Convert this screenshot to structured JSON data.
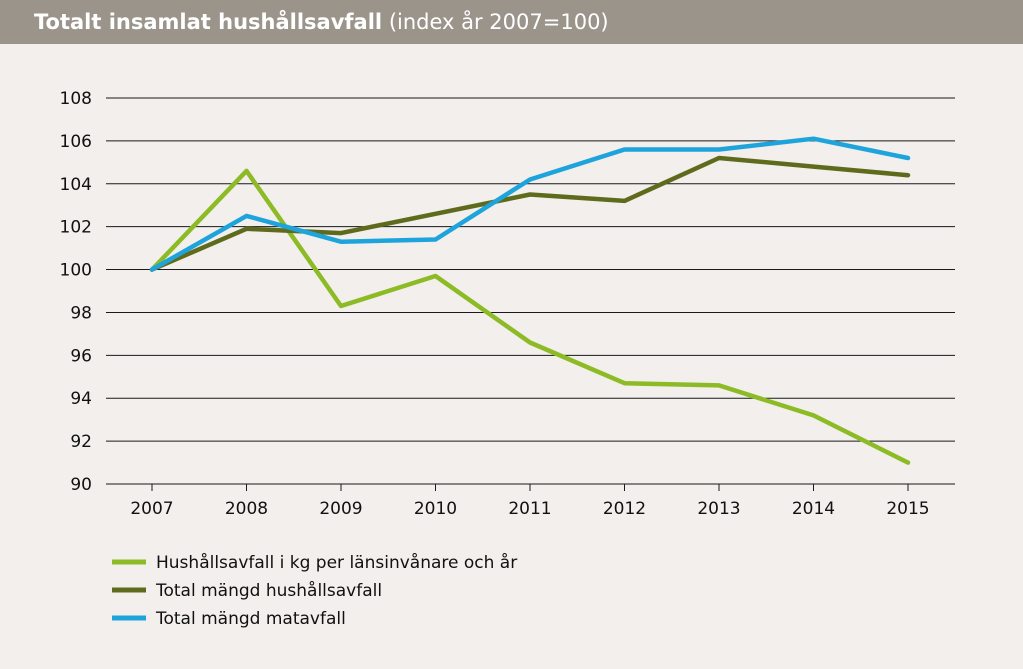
{
  "header": {
    "title": "Totalt insamlat hushållsavfall",
    "subtitle": "(index år 2007=100)"
  },
  "chart_data": {
    "type": "line",
    "title": "Totalt insamlat hushållsavfall",
    "subtitle": "(index år 2007=100)",
    "xlabel": "",
    "ylabel": "",
    "x": [
      "2007",
      "2008",
      "2009",
      "2010",
      "2011",
      "2012",
      "2013",
      "2014",
      "2015"
    ],
    "ylim": [
      90,
      108
    ],
    "yticks": [
      90,
      92,
      94,
      96,
      98,
      100,
      102,
      104,
      106,
      108
    ],
    "grid": true,
    "legend_position": "bottom-left",
    "series": [
      {
        "name": "Hushållsavfall i kg per länsinvånare och år",
        "color": "#8dbb25",
        "values": [
          100,
          104.6,
          98.3,
          99.7,
          96.6,
          94.7,
          94.6,
          93.2,
          91.0
        ]
      },
      {
        "name": "Total mängd hushållsavfall",
        "color": "#5f6b1c",
        "values": [
          100,
          101.9,
          101.7,
          102.6,
          103.5,
          103.2,
          105.2,
          104.8,
          104.4
        ]
      },
      {
        "name": "Total mängd matavfall",
        "color": "#1ea4dc",
        "values": [
          100,
          102.5,
          101.3,
          101.4,
          104.2,
          105.6,
          105.6,
          106.1,
          105.2
        ]
      }
    ]
  }
}
